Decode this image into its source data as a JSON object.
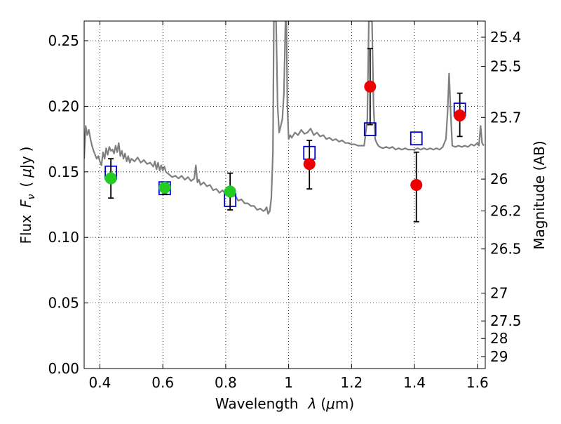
{
  "chart_data": {
    "type": "scatter",
    "xlabel_parts": [
      "Wavelength",
      "λ",
      "(",
      "μ",
      "m)"
    ],
    "ylabel_parts": [
      "Flux",
      "F",
      "ν",
      "(",
      "μ",
      "Jy",
      ")"
    ],
    "y2label": "Magnitude (AB)",
    "xlim": [
      0.35,
      1.625
    ],
    "ylim": [
      0.0,
      0.265
    ],
    "grid": true,
    "x_ticks": [
      {
        "value": 0.4,
        "label": "0.4"
      },
      {
        "value": 0.6,
        "label": "0.6"
      },
      {
        "value": 0.8,
        "label": "0.8"
      },
      {
        "value": 1.0,
        "label": "1"
      },
      {
        "value": 1.2,
        "label": "1.2"
      },
      {
        "value": 1.4,
        "label": "1.4"
      },
      {
        "value": 1.6,
        "label": "1.6"
      }
    ],
    "y_ticks": [
      {
        "value": 0.0,
        "label": "0.00"
      },
      {
        "value": 0.05,
        "label": "0.05"
      },
      {
        "value": 0.1,
        "label": "0.10"
      },
      {
        "value": 0.15,
        "label": "0.15"
      },
      {
        "value": 0.2,
        "label": "0.20"
      },
      {
        "value": 0.25,
        "label": "0.25"
      }
    ],
    "y2_ticks": [
      {
        "flux": 0.2527,
        "label": "25.4"
      },
      {
        "flux": 0.2305,
        "label": "25.5"
      },
      {
        "flux": 0.1915,
        "label": "25.7"
      },
      {
        "flux": 0.1445,
        "label": "26"
      },
      {
        "flux": 0.1202,
        "label": "26.2"
      },
      {
        "flux": 0.0912,
        "label": "26.5"
      },
      {
        "flux": 0.0575,
        "label": "27"
      },
      {
        "flux": 0.0363,
        "label": "27.5"
      },
      {
        "flux": 0.0229,
        "label": "28"
      },
      {
        "flux": 0.0091,
        "label": "29"
      }
    ],
    "series": [
      {
        "marker": "circle",
        "color": "#22cc22",
        "x": [
          0.435,
          0.606,
          0.814
        ],
        "y": [
          0.145,
          0.138,
          0.135
        ],
        "yerr_low": [
          0.13,
          0.133,
          0.121
        ],
        "yerr_high": [
          0.16,
          0.142,
          0.149
        ]
      },
      {
        "marker": "circle",
        "color": "#ee0000",
        "x": [
          1.066,
          1.259,
          1.406,
          1.544
        ],
        "y": [
          0.156,
          0.215,
          0.14,
          0.193
        ],
        "yerr_low": [
          0.137,
          0.186,
          0.112,
          0.177
        ],
        "yerr_high": [
          0.174,
          0.244,
          0.165,
          0.21
        ]
      },
      {
        "marker": "open-square",
        "color": "#0000cc",
        "x": [
          0.435,
          0.606,
          0.814,
          1.066,
          1.259,
          1.406,
          1.544
        ],
        "y": [
          0.1495,
          0.1375,
          0.1285,
          0.1645,
          0.1825,
          0.1755,
          0.1975
        ]
      },
      {
        "marker": "line",
        "color": "#808080",
        "x": [
          0.35,
          0.355,
          0.36,
          0.365,
          0.37,
          0.375,
          0.38,
          0.385,
          0.39,
          0.395,
          0.4,
          0.405,
          0.41,
          0.415,
          0.42,
          0.425,
          0.43,
          0.435,
          0.44,
          0.445,
          0.45,
          0.455,
          0.46,
          0.465,
          0.47,
          0.475,
          0.48,
          0.485,
          0.49,
          0.495,
          0.5,
          0.51,
          0.52,
          0.53,
          0.54,
          0.55,
          0.56,
          0.57,
          0.575,
          0.58,
          0.585,
          0.59,
          0.595,
          0.6,
          0.605,
          0.61,
          0.62,
          0.63,
          0.64,
          0.65,
          0.66,
          0.67,
          0.68,
          0.69,
          0.7,
          0.705,
          0.71,
          0.715,
          0.72,
          0.73,
          0.74,
          0.75,
          0.76,
          0.77,
          0.78,
          0.79,
          0.8,
          0.81,
          0.82,
          0.83,
          0.84,
          0.85,
          0.86,
          0.87,
          0.88,
          0.89,
          0.9,
          0.91,
          0.92,
          0.925,
          0.93,
          0.935,
          0.94,
          0.945,
          0.95,
          0.953,
          0.956,
          0.96,
          0.965,
          0.97,
          0.975,
          0.98,
          0.985,
          0.99,
          0.993,
          0.996,
          1.0,
          1.005,
          1.01,
          1.02,
          1.03,
          1.04,
          1.05,
          1.06,
          1.07,
          1.08,
          1.09,
          1.1,
          1.11,
          1.12,
          1.13,
          1.14,
          1.15,
          1.16,
          1.17,
          1.18,
          1.19,
          1.2,
          1.21,
          1.22,
          1.23,
          1.24,
          1.25,
          1.255,
          1.26,
          1.265,
          1.27,
          1.275,
          1.28,
          1.285,
          1.29,
          1.3,
          1.31,
          1.32,
          1.33,
          1.34,
          1.35,
          1.36,
          1.37,
          1.38,
          1.39,
          1.4,
          1.41,
          1.42,
          1.43,
          1.44,
          1.45,
          1.46,
          1.47,
          1.48,
          1.49,
          1.5,
          1.505,
          1.51,
          1.515,
          1.52,
          1.53,
          1.54,
          1.55,
          1.56,
          1.57,
          1.58,
          1.59,
          1.6,
          1.605,
          1.61,
          1.615,
          1.62
        ],
        "y": [
          0.16,
          0.185,
          0.178,
          0.182,
          0.175,
          0.17,
          0.166,
          0.163,
          0.16,
          0.162,
          0.158,
          0.155,
          0.165,
          0.16,
          0.168,
          0.163,
          0.169,
          0.166,
          0.167,
          0.164,
          0.17,
          0.165,
          0.172,
          0.162,
          0.166,
          0.16,
          0.164,
          0.158,
          0.162,
          0.157,
          0.16,
          0.158,
          0.161,
          0.157,
          0.159,
          0.156,
          0.157,
          0.154,
          0.158,
          0.152,
          0.157,
          0.151,
          0.155,
          0.151,
          0.154,
          0.15,
          0.148,
          0.146,
          0.147,
          0.145,
          0.147,
          0.144,
          0.146,
          0.143,
          0.145,
          0.155,
          0.142,
          0.144,
          0.14,
          0.142,
          0.139,
          0.14,
          0.136,
          0.137,
          0.134,
          0.136,
          0.133,
          0.134,
          0.131,
          0.132,
          0.128,
          0.129,
          0.126,
          0.126,
          0.124,
          0.124,
          0.121,
          0.122,
          0.12,
          0.121,
          0.123,
          0.118,
          0.12,
          0.13,
          0.165,
          0.265,
          0.265,
          0.265,
          0.2,
          0.18,
          0.185,
          0.19,
          0.21,
          0.265,
          0.265,
          0.2,
          0.175,
          0.178,
          0.176,
          0.18,
          0.178,
          0.182,
          0.179,
          0.18,
          0.183,
          0.178,
          0.18,
          0.177,
          0.178,
          0.175,
          0.176,
          0.174,
          0.175,
          0.173,
          0.174,
          0.172,
          0.172,
          0.171,
          0.171,
          0.17,
          0.17,
          0.17,
          0.19,
          0.265,
          0.265,
          0.265,
          0.2,
          0.175,
          0.172,
          0.17,
          0.169,
          0.168,
          0.169,
          0.168,
          0.169,
          0.167,
          0.168,
          0.167,
          0.168,
          0.167,
          0.167,
          0.167,
          0.168,
          0.167,
          0.168,
          0.167,
          0.168,
          0.167,
          0.168,
          0.167,
          0.169,
          0.175,
          0.195,
          0.225,
          0.195,
          0.17,
          0.169,
          0.17,
          0.169,
          0.17,
          0.169,
          0.171,
          0.17,
          0.172,
          0.17,
          0.185,
          0.172,
          0.17
        ]
      }
    ]
  }
}
